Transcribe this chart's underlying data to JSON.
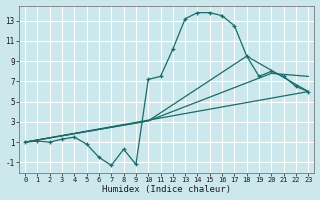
{
  "xlabel": "Humidex (Indice chaleur)",
  "bg_color": "#cce8ec",
  "grid_color": "#ffffff",
  "line_color": "#1a6b6b",
  "xlim": [
    -0.5,
    23.5
  ],
  "ylim": [
    -2,
    14.5
  ],
  "xticks": [
    0,
    1,
    2,
    3,
    4,
    5,
    6,
    7,
    8,
    9,
    10,
    11,
    12,
    13,
    14,
    15,
    16,
    17,
    18,
    19,
    20,
    21,
    22,
    23
  ],
  "yticks": [
    -1,
    1,
    3,
    5,
    7,
    9,
    11,
    13
  ],
  "series1_x": [
    0,
    1,
    2,
    3,
    4,
    5,
    6,
    7,
    8,
    9,
    10,
    11,
    12,
    13,
    14,
    15,
    16,
    17,
    18,
    19,
    20,
    21,
    22,
    23
  ],
  "series1_y": [
    1.0,
    1.1,
    1.0,
    1.3,
    1.5,
    0.8,
    -0.5,
    -1.3,
    0.3,
    -1.2,
    7.2,
    7.5,
    10.2,
    13.2,
    13.8,
    13.8,
    13.5,
    12.5,
    9.5,
    7.5,
    8.0,
    7.5,
    6.5,
    6.0
  ],
  "series2_x": [
    0,
    23
  ],
  "series2_y": [
    1.0,
    6.0
  ],
  "series3_x": [
    0,
    10,
    20,
    23
  ],
  "series3_y": [
    1.0,
    3.1,
    7.8,
    7.5
  ],
  "series4_x": [
    0,
    10,
    18,
    23
  ],
  "series4_y": [
    1.0,
    3.1,
    9.5,
    6.0
  ]
}
